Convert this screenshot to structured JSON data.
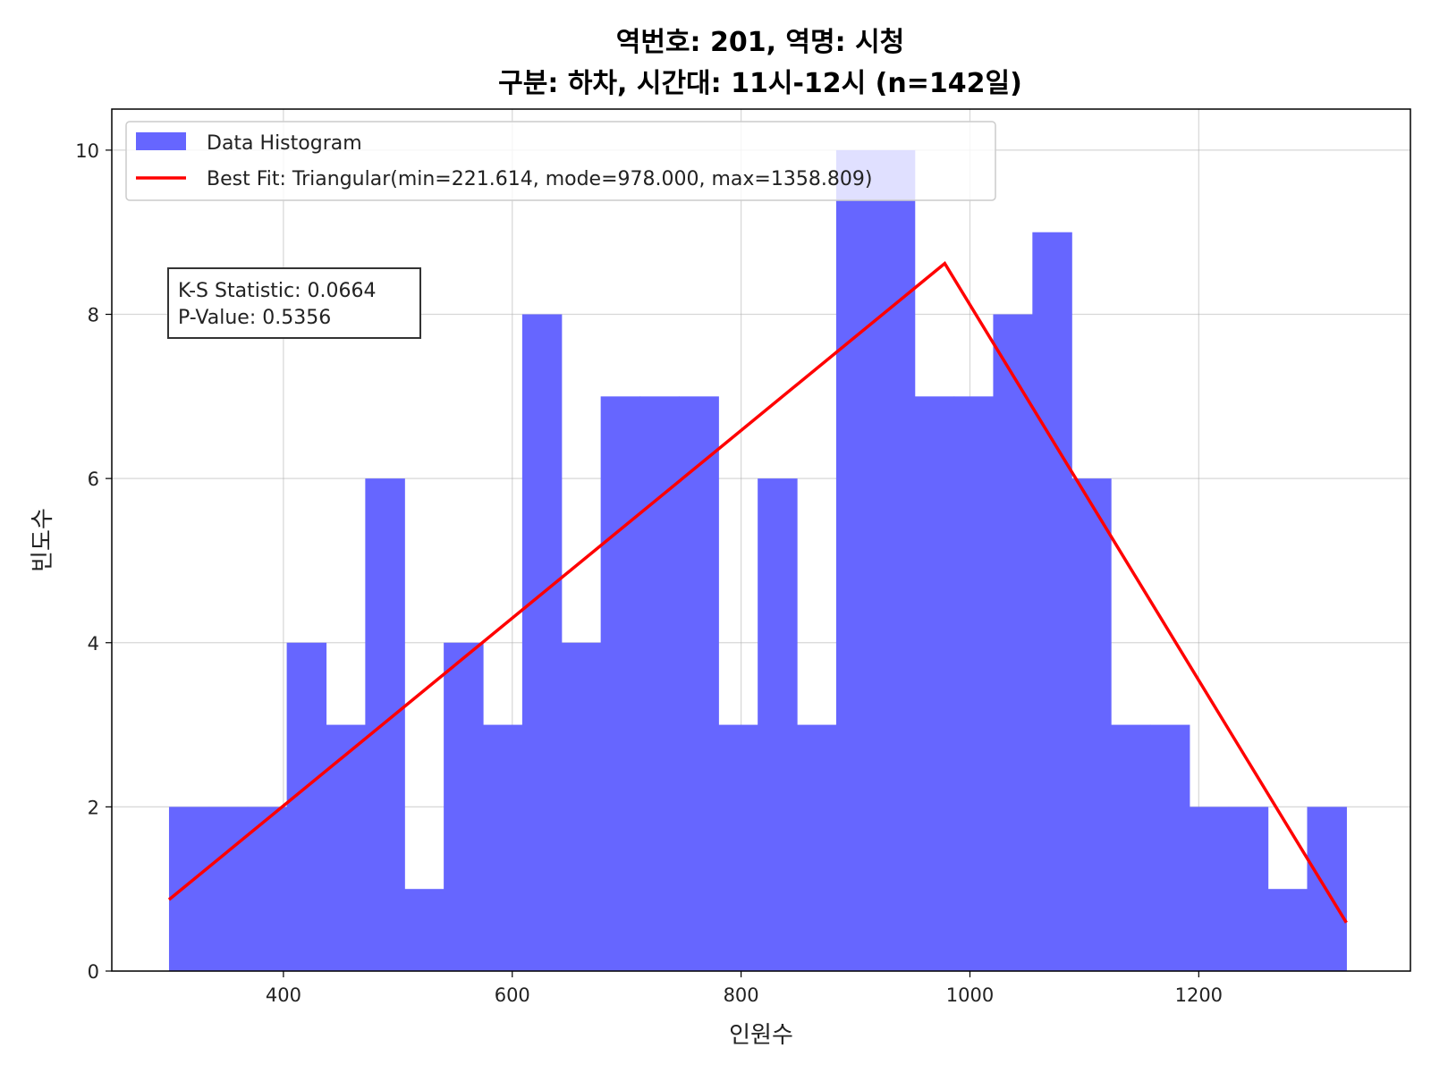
{
  "chart_data": {
    "type": "bar",
    "title_line1": "역번호: 201, 역명: 시청",
    "title_line2": "구분: 하차, 시간대: 11시-12시 (n=142일)",
    "xlabel": "인원수",
    "ylabel": "빈도수",
    "xlim": [
      250,
      1385
    ],
    "ylim": [
      0,
      10.5
    ],
    "xticks": [
      400,
      600,
      800,
      1000,
      1200
    ],
    "yticks": [
      0,
      2,
      4,
      6,
      8,
      10
    ],
    "grid": true,
    "legend_position": "top-left",
    "histogram": {
      "name": "Data Histogram",
      "color": "#6666ff",
      "bin_edges": [
        300,
        334.3,
        368.6,
        402.9,
        437.2,
        471.5,
        505.8,
        540.1,
        574.4,
        608.7,
        643,
        677.3,
        711.6,
        745.9,
        780.2,
        814.5,
        848.8,
        883.1,
        917.4,
        951.7,
        986,
        1020.3,
        1054.6,
        1088.9,
        1123.2,
        1157.5,
        1191.8,
        1226.1,
        1260.4,
        1294.7,
        1329
      ],
      "counts": [
        2,
        2,
        2,
        4,
        3,
        6,
        1,
        4,
        3,
        8,
        4,
        7,
        7,
        7,
        3,
        6,
        3,
        10,
        10,
        7,
        7,
        8,
        9,
        6,
        3,
        3,
        2,
        2,
        1,
        2
      ]
    },
    "fit": {
      "name": "Best Fit: Triangular(min=221.614, mode=978.000, max=1358.809)",
      "color": "#ff0000",
      "min": 221.614,
      "mode": 978.0,
      "max": 1358.809,
      "x": [
        300,
        978,
        1329
      ],
      "y": [
        0.87,
        8.62,
        0.59
      ]
    },
    "annotation": {
      "line1": "K-S Statistic: 0.0664",
      "line2": "P-Value: 0.5356"
    }
  }
}
